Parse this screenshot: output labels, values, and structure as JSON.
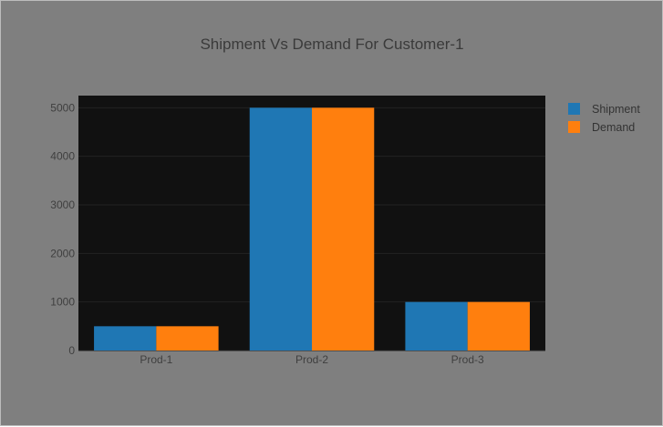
{
  "chart_data": {
    "type": "bar",
    "title": "Shipment Vs Demand For Customer-1",
    "categories": [
      "Prod-1",
      "Prod-2",
      "Prod-3"
    ],
    "series": [
      {
        "name": "Shipment",
        "values": [
          500,
          5000,
          1000
        ],
        "color": "#1f77b4"
      },
      {
        "name": "Demand",
        "values": [
          500,
          5000,
          1000
        ],
        "color": "#ff7f0e"
      }
    ],
    "xlabel": "",
    "ylabel": "",
    "ylim": [
      0,
      5250
    ],
    "yticks": [
      0,
      1000,
      2000,
      3000,
      4000,
      5000
    ],
    "grid": true,
    "legend_position": "top-right",
    "colors": {
      "paper_background": "#7f7f7f",
      "plot_background": "#111111",
      "gridline": "#222222"
    }
  }
}
